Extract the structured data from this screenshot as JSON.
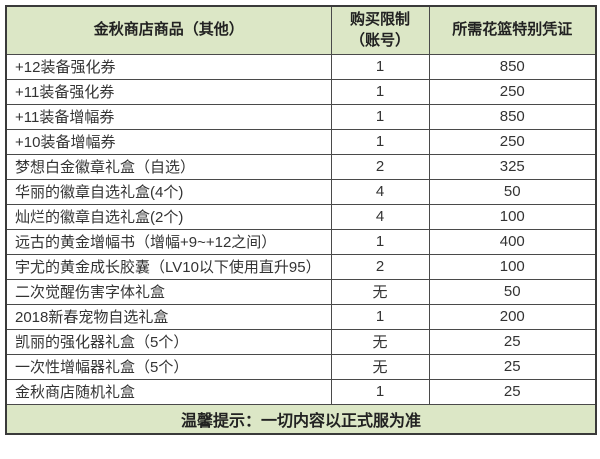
{
  "table": {
    "headers": {
      "item": "金秋商店商品（其他）",
      "limit": "购买限制\n（账号）",
      "cost": "所需花篮特别凭证"
    },
    "rows": [
      {
        "item": "+12装备强化券",
        "limit": "1",
        "cost": "850"
      },
      {
        "item": "+11装备强化券",
        "limit": "1",
        "cost": "250"
      },
      {
        "item": "+11装备增幅券",
        "limit": "1",
        "cost": "850"
      },
      {
        "item": "+10装备增幅券",
        "limit": "1",
        "cost": "250"
      },
      {
        "item": "梦想白金徽章礼盒（自选）",
        "limit": "2",
        "cost": "325"
      },
      {
        "item": "华丽的徽章自选礼盒(4个)",
        "limit": "4",
        "cost": "50"
      },
      {
        "item": "灿烂的徽章自选礼盒(2个)",
        "limit": "4",
        "cost": "100"
      },
      {
        "item": "远古的黄金增幅书（增幅+9~+12之间）",
        "limit": "1",
        "cost": "400"
      },
      {
        "item": "宇尤的黄金成长胶囊（LV10以下使用直升95）",
        "limit": "2",
        "cost": "100"
      },
      {
        "item": "二次觉醒伤害字体礼盒",
        "limit": "无",
        "cost": "50"
      },
      {
        "item": "2018新春宠物自选礼盒",
        "limit": "1",
        "cost": "200"
      },
      {
        "item": "凯丽的强化器礼盒（5个）",
        "limit": "无",
        "cost": "25"
      },
      {
        "item": "一次性增幅器礼盒（5个）",
        "limit": "无",
        "cost": "25"
      },
      {
        "item": "金秋商店随机礼盒",
        "limit": "1",
        "cost": "25"
      }
    ],
    "footer_note": "温馨提示：一切内容以正式服为准"
  },
  "colors": {
    "header_bg": "#dce7c6",
    "border_outer": "#3a3a3a",
    "border_inner": "#4a4a4a",
    "text": "#333333"
  }
}
